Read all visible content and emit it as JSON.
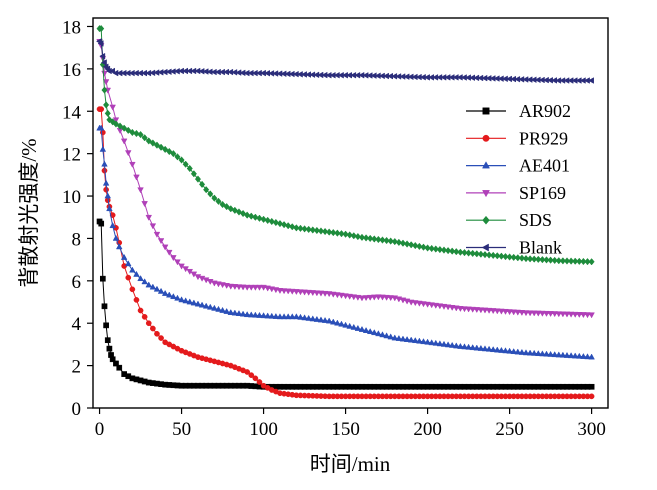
{
  "chart_data": {
    "type": "scatter",
    "xlabel": "时间/min",
    "ylabel": "背散射光强度/%",
    "xlim": [
      -4,
      310
    ],
    "ylim": [
      0,
      18.4
    ],
    "xticks": [
      0,
      50,
      100,
      150,
      200,
      250,
      300
    ],
    "yticks": [
      0,
      2,
      4,
      6,
      8,
      10,
      12,
      14,
      16,
      18
    ],
    "legend_position": "right",
    "grid": false,
    "series": [
      {
        "name": "AR902",
        "color": "#000000",
        "marker": "square",
        "points": [
          [
            0,
            8.8
          ],
          [
            1,
            8.7
          ],
          [
            2,
            6.1
          ],
          [
            3,
            4.8
          ],
          [
            4,
            3.9
          ],
          [
            5,
            3.2
          ],
          [
            6,
            2.8
          ],
          [
            7,
            2.5
          ],
          [
            8,
            2.3
          ],
          [
            10,
            2.1
          ],
          [
            12,
            1.9
          ],
          [
            15,
            1.6
          ],
          [
            20,
            1.4
          ],
          [
            25,
            1.3
          ],
          [
            30,
            1.2
          ],
          [
            35,
            1.15
          ],
          [
            40,
            1.1
          ],
          [
            50,
            1.05
          ],
          [
            60,
            1.05
          ],
          [
            70,
            1.05
          ],
          [
            80,
            1.05
          ],
          [
            90,
            1.05
          ],
          [
            100,
            1.0
          ],
          [
            120,
            1.0
          ],
          [
            140,
            1.0
          ],
          [
            160,
            1.0
          ],
          [
            180,
            1.0
          ],
          [
            200,
            1.0
          ],
          [
            220,
            1.0
          ],
          [
            240,
            1.0
          ],
          [
            260,
            1.0
          ],
          [
            280,
            1.0
          ],
          [
            300,
            1.0
          ]
        ]
      },
      {
        "name": "PR929",
        "color": "#e41a1c",
        "marker": "circle",
        "points": [
          [
            0,
            14.1
          ],
          [
            1,
            14.1
          ],
          [
            2,
            13.0
          ],
          [
            3,
            11.2
          ],
          [
            4,
            10.3
          ],
          [
            5,
            9.8
          ],
          [
            6,
            9.5
          ],
          [
            8,
            9.1
          ],
          [
            10,
            8.5
          ],
          [
            12,
            7.8
          ],
          [
            15,
            6.7
          ],
          [
            20,
            5.6
          ],
          [
            25,
            4.6
          ],
          [
            30,
            4.0
          ],
          [
            35,
            3.5
          ],
          [
            40,
            3.1
          ],
          [
            45,
            2.9
          ],
          [
            50,
            2.7
          ],
          [
            60,
            2.4
          ],
          [
            70,
            2.2
          ],
          [
            80,
            2.0
          ],
          [
            90,
            1.7
          ],
          [
            95,
            1.4
          ],
          [
            100,
            1.05
          ],
          [
            105,
            0.85
          ],
          [
            110,
            0.7
          ],
          [
            120,
            0.6
          ],
          [
            140,
            0.55
          ],
          [
            160,
            0.55
          ],
          [
            180,
            0.55
          ],
          [
            200,
            0.55
          ],
          [
            220,
            0.55
          ],
          [
            240,
            0.55
          ],
          [
            260,
            0.55
          ],
          [
            280,
            0.55
          ],
          [
            300,
            0.55
          ]
        ]
      },
      {
        "name": "AE401",
        "color": "#2a4fb8",
        "marker": "triangle-up",
        "points": [
          [
            0,
            13.2
          ],
          [
            1,
            13.2
          ],
          [
            2,
            12.2
          ],
          [
            3,
            11.5
          ],
          [
            4,
            10.6
          ],
          [
            5,
            10.0
          ],
          [
            6,
            9.4
          ],
          [
            8,
            8.6
          ],
          [
            10,
            8.0
          ],
          [
            12,
            7.6
          ],
          [
            15,
            7.1
          ],
          [
            20,
            6.5
          ],
          [
            25,
            6.1
          ],
          [
            30,
            5.8
          ],
          [
            40,
            5.4
          ],
          [
            50,
            5.1
          ],
          [
            60,
            4.9
          ],
          [
            70,
            4.7
          ],
          [
            80,
            4.5
          ],
          [
            90,
            4.4
          ],
          [
            100,
            4.35
          ],
          [
            110,
            4.3
          ],
          [
            120,
            4.3
          ],
          [
            130,
            4.2
          ],
          [
            140,
            4.1
          ],
          [
            150,
            3.9
          ],
          [
            160,
            3.7
          ],
          [
            170,
            3.5
          ],
          [
            180,
            3.3
          ],
          [
            190,
            3.2
          ],
          [
            200,
            3.1
          ],
          [
            220,
            2.9
          ],
          [
            240,
            2.75
          ],
          [
            260,
            2.6
          ],
          [
            280,
            2.5
          ],
          [
            300,
            2.4
          ]
        ]
      },
      {
        "name": "SP169",
        "color": "#b040b8",
        "marker": "triangle-down",
        "points": [
          [
            0,
            17.3
          ],
          [
            1,
            17.1
          ],
          [
            2,
            16.5
          ],
          [
            3,
            15.8
          ],
          [
            4,
            15.4
          ],
          [
            5,
            15.0
          ],
          [
            8,
            14.2
          ],
          [
            10,
            13.6
          ],
          [
            15,
            12.6
          ],
          [
            20,
            11.5
          ],
          [
            25,
            10.3
          ],
          [
            30,
            9.0
          ],
          [
            35,
            8.2
          ],
          [
            40,
            7.6
          ],
          [
            45,
            7.1
          ],
          [
            50,
            6.7
          ],
          [
            60,
            6.2
          ],
          [
            70,
            5.9
          ],
          [
            80,
            5.75
          ],
          [
            90,
            5.7
          ],
          [
            100,
            5.7
          ],
          [
            110,
            5.55
          ],
          [
            120,
            5.5
          ],
          [
            130,
            5.45
          ],
          [
            140,
            5.4
          ],
          [
            150,
            5.3
          ],
          [
            160,
            5.2
          ],
          [
            170,
            5.25
          ],
          [
            180,
            5.2
          ],
          [
            190,
            5.0
          ],
          [
            200,
            4.9
          ],
          [
            220,
            4.7
          ],
          [
            240,
            4.6
          ],
          [
            260,
            4.5
          ],
          [
            280,
            4.45
          ],
          [
            300,
            4.4
          ]
        ]
      },
      {
        "name": "SDS",
        "color": "#1e8c3c",
        "marker": "diamond",
        "points": [
          [
            0,
            17.9
          ],
          [
            1,
            17.9
          ],
          [
            2,
            16.2
          ],
          [
            3,
            15.0
          ],
          [
            4,
            14.3
          ],
          [
            5,
            13.9
          ],
          [
            6,
            13.6
          ],
          [
            8,
            13.5
          ],
          [
            10,
            13.4
          ],
          [
            15,
            13.2
          ],
          [
            20,
            13.0
          ],
          [
            25,
            12.9
          ],
          [
            30,
            12.6
          ],
          [
            35,
            12.4
          ],
          [
            40,
            12.2
          ],
          [
            45,
            12.0
          ],
          [
            50,
            11.7
          ],
          [
            55,
            11.3
          ],
          [
            60,
            10.8
          ],
          [
            65,
            10.3
          ],
          [
            70,
            9.9
          ],
          [
            75,
            9.6
          ],
          [
            80,
            9.4
          ],
          [
            90,
            9.1
          ],
          [
            100,
            8.9
          ],
          [
            110,
            8.7
          ],
          [
            120,
            8.5
          ],
          [
            130,
            8.4
          ],
          [
            140,
            8.3
          ],
          [
            150,
            8.2
          ],
          [
            160,
            8.05
          ],
          [
            170,
            7.95
          ],
          [
            180,
            7.85
          ],
          [
            190,
            7.7
          ],
          [
            200,
            7.55
          ],
          [
            220,
            7.35
          ],
          [
            240,
            7.2
          ],
          [
            260,
            7.05
          ],
          [
            280,
            6.95
          ],
          [
            300,
            6.9
          ]
        ]
      },
      {
        "name": "Blank",
        "color": "#2b2d7a",
        "marker": "triangle-left",
        "points": [
          [
            0,
            17.3
          ],
          [
            1,
            17.2
          ],
          [
            2,
            16.6
          ],
          [
            3,
            16.3
          ],
          [
            4,
            16.1
          ],
          [
            5,
            16.0
          ],
          [
            6,
            15.9
          ],
          [
            8,
            15.9
          ],
          [
            10,
            15.8
          ],
          [
            15,
            15.8
          ],
          [
            20,
            15.8
          ],
          [
            30,
            15.8
          ],
          [
            40,
            15.85
          ],
          [
            50,
            15.9
          ],
          [
            60,
            15.9
          ],
          [
            70,
            15.85
          ],
          [
            80,
            15.85
          ],
          [
            90,
            15.8
          ],
          [
            100,
            15.8
          ],
          [
            120,
            15.75
          ],
          [
            140,
            15.7
          ],
          [
            160,
            15.7
          ],
          [
            180,
            15.65
          ],
          [
            200,
            15.6
          ],
          [
            220,
            15.6
          ],
          [
            240,
            15.55
          ],
          [
            260,
            15.5
          ],
          [
            280,
            15.45
          ],
          [
            300,
            15.45
          ]
        ]
      }
    ]
  }
}
